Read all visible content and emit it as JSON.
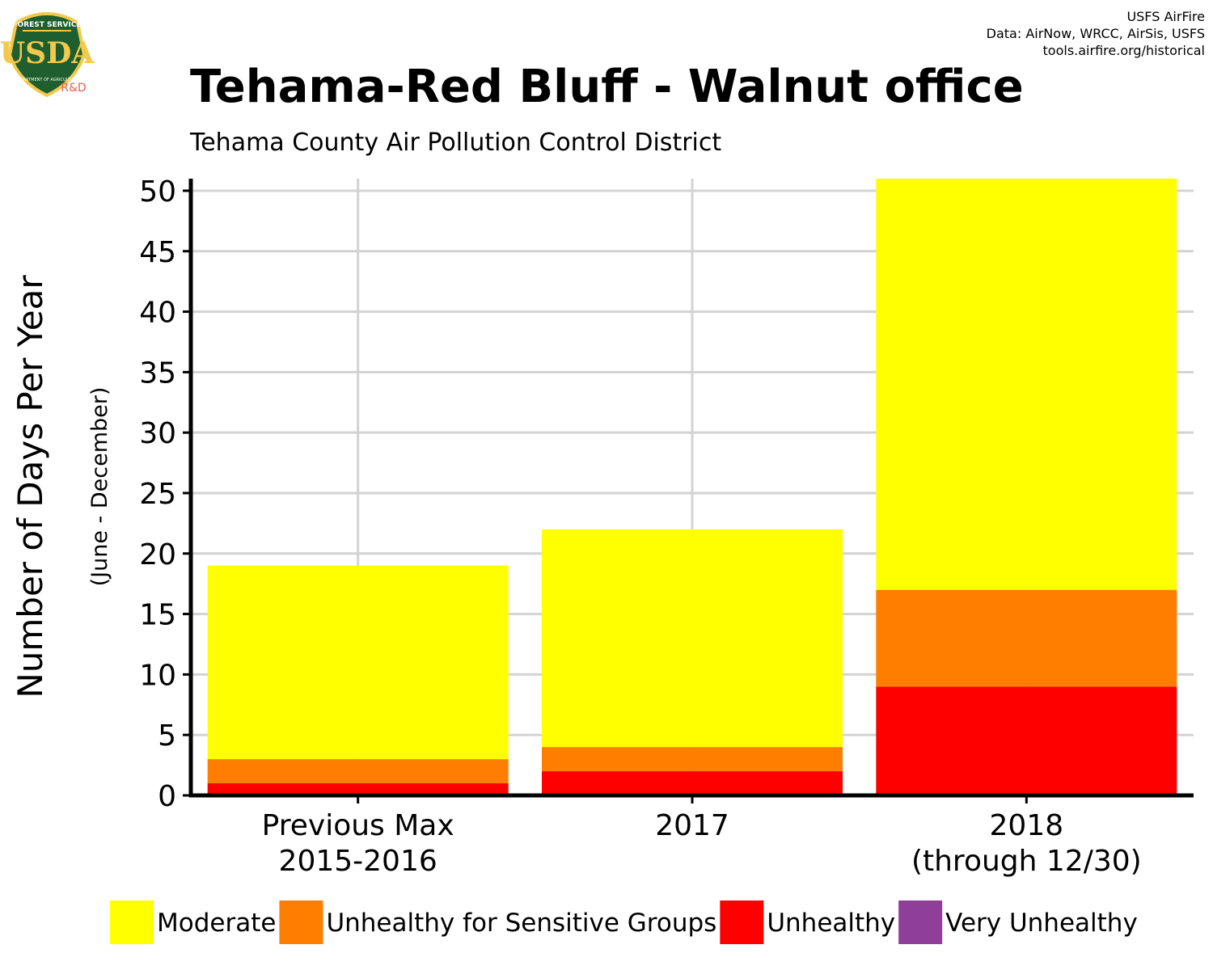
{
  "header": {
    "title": "Tehama-Red Bluff - Walnut office",
    "subtitle": "Tehama County Air Pollution Control District",
    "credits": [
      "USFS AirFire",
      "Data: AirNow, WRCC, AirSis, USFS",
      "tools.airfire.org/historical"
    ]
  },
  "logo": {
    "top_text": "FOREST SERVICE",
    "mark": "USDA",
    "bottom_text": "DEPARTMENT OF AGRICULTURE",
    "tag": "R&D"
  },
  "chart_data": {
    "type": "bar",
    "stacked": true,
    "title": "Tehama-Red Bluff - Walnut office",
    "subtitle": "Tehama County Air Pollution Control District",
    "ylabel": "Number of Days Per Year",
    "ylabel_sub": "(June - December)",
    "xlabel": "",
    "categories": [
      [
        "Previous Max",
        "2015-2016"
      ],
      [
        "2017"
      ],
      [
        "2018",
        "(through 12/30)"
      ]
    ],
    "yticks": [
      0,
      5,
      10,
      15,
      20,
      25,
      30,
      35,
      40,
      45,
      50
    ],
    "ylim": [
      0,
      51
    ],
    "grid": true,
    "legend_position": "bottom",
    "series": [
      {
        "name": "Unhealthy",
        "color": "#FF0000",
        "values": [
          1,
          2,
          9
        ]
      },
      {
        "name": "Unhealthy for Sensitive Groups",
        "color": "#FF7E00",
        "values": [
          2,
          2,
          8
        ]
      },
      {
        "name": "Moderate",
        "color": "#FFFF00",
        "values": [
          16,
          18,
          34
        ]
      },
      {
        "name": "Very Unhealthy",
        "color": "#8F3F97",
        "values": [
          0,
          0,
          0
        ]
      }
    ],
    "legend": [
      {
        "name": "Moderate",
        "color": "#FFFF00"
      },
      {
        "name": "Unhealthy for Sensitive Groups",
        "color": "#FF7E00"
      },
      {
        "name": "Unhealthy",
        "color": "#FF0000"
      },
      {
        "name": "Very Unhealthy",
        "color": "#8F3F97"
      }
    ]
  }
}
